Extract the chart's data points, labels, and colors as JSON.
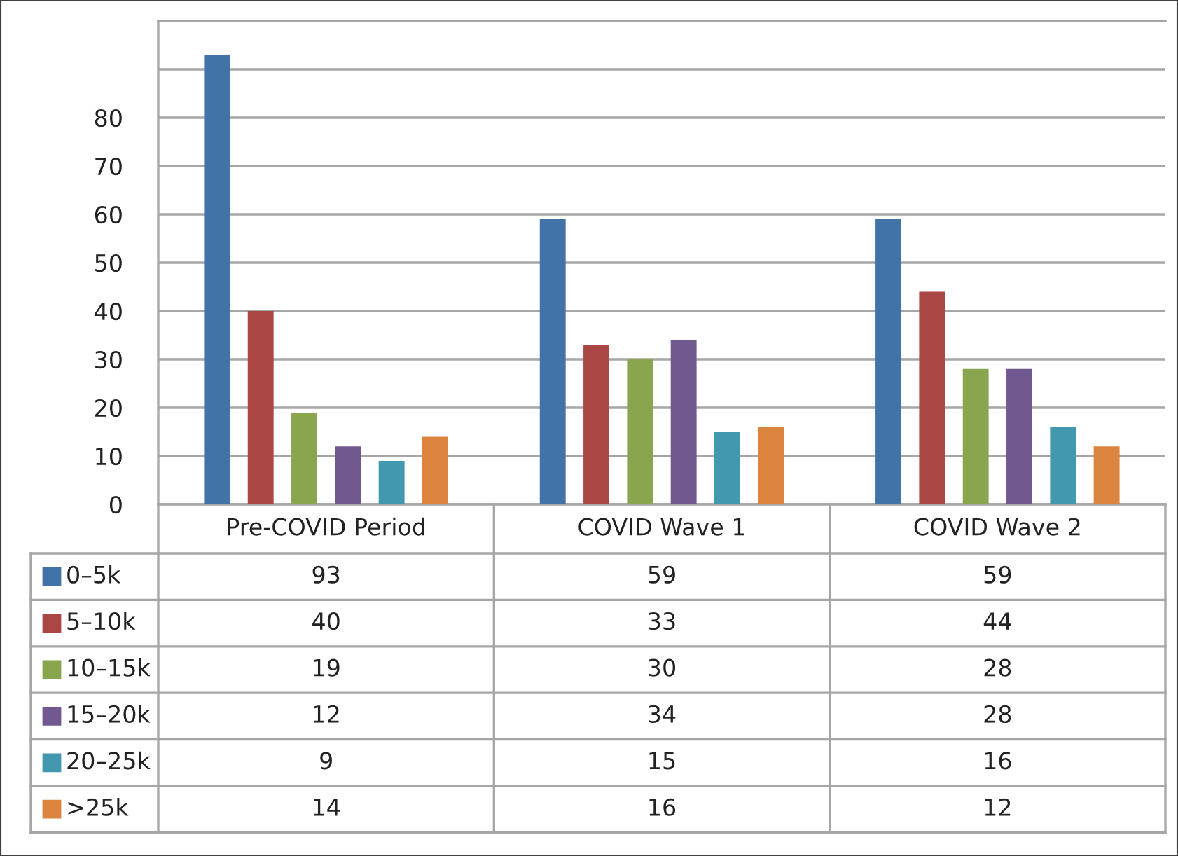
{
  "chart_data": {
    "type": "bar",
    "categories": [
      "Pre-COVID Period",
      "COVID Wave 1",
      "COVID Wave 2"
    ],
    "series": [
      {
        "name": "0–5k",
        "color": "#4172a8",
        "values": [
          93,
          59,
          59
        ]
      },
      {
        "name": "5–10k",
        "color": "#aa4643",
        "values": [
          40,
          33,
          44
        ]
      },
      {
        "name": "10–15k",
        "color": "#89a54e",
        "values": [
          19,
          30,
          28
        ]
      },
      {
        "name": "15–20k",
        "color": "#71588f",
        "values": [
          12,
          34,
          28
        ]
      },
      {
        "name": "20–25k",
        "color": "#4198af",
        "values": [
          9,
          15,
          16
        ]
      },
      {
        "name": ">25k",
        "color": "#db843d",
        "values": [
          14,
          16,
          12
        ]
      }
    ],
    "ylim": [
      0,
      100
    ],
    "yticks": [
      0,
      10,
      20,
      30,
      40,
      50,
      60,
      70,
      80,
      {
        "value": 90,
        "label": null
      },
      {
        "value": 100,
        "label": null
      }
    ],
    "grid": "y",
    "legend": "bottom",
    "data_labels": true
  }
}
